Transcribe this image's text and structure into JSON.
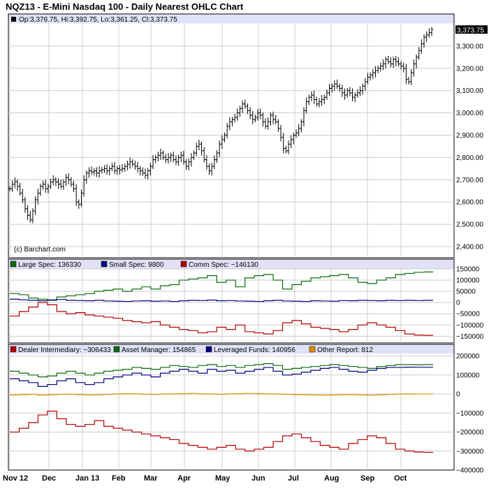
{
  "title": "NQZ13 - E-Mini Nasdaq 100 - Daily Nearest OHLC Chart",
  "watermark": "(c) Barchart.com",
  "colors": {
    "large_spec": "#0b6b0b",
    "small_spec": "#00007f",
    "comm_spec": "#b00000",
    "dealer": "#b00000",
    "asset_manager": "#0b6b0b",
    "leveraged": "#00007f",
    "other": "#e08a00",
    "legend_bg": "#e1e1f8",
    "grid": "#cccccc"
  },
  "chart_data": [
    {
      "type": "ohlc",
      "name": "price",
      "legend": {
        "symbol": "Op:3,376.75, Hi:3,392.75, Lo:3,361.25, Cl:3,373.75"
      },
      "last_label": "3,373.75",
      "ylim": [
        2350,
        3400
      ],
      "y_ticks": [
        {
          "v": 3300,
          "label": "3,300.00"
        },
        {
          "v": 3200,
          "label": "3,200.00"
        },
        {
          "v": 3100,
          "label": "3,100.00"
        },
        {
          "v": 3000,
          "label": "3,000.00"
        },
        {
          "v": 2900,
          "label": "2,900.00"
        },
        {
          "v": 2800,
          "label": "2,800.00"
        },
        {
          "v": 2700,
          "label": "2,700.00"
        },
        {
          "v": 2600,
          "label": "2,600.00"
        },
        {
          "v": 2500,
          "label": "2,500.00"
        },
        {
          "v": 2400,
          "label": "2,400.00"
        }
      ],
      "closes": [
        2660,
        2680,
        2690,
        2670,
        2640,
        2610,
        2570,
        2540,
        2520,
        2560,
        2610,
        2640,
        2670,
        2680,
        2660,
        2670,
        2690,
        2700,
        2690,
        2680,
        2670,
        2690,
        2710,
        2700,
        2680,
        2660,
        2600,
        2590,
        2640,
        2700,
        2730,
        2740,
        2735,
        2740,
        2730,
        2740,
        2745,
        2750,
        2740,
        2750,
        2760,
        2740,
        2750,
        2745,
        2750,
        2760,
        2770,
        2780,
        2770,
        2760,
        2750,
        2740,
        2730,
        2720,
        2740,
        2760,
        2790,
        2800,
        2810,
        2820,
        2800,
        2790,
        2800,
        2810,
        2790,
        2780,
        2800,
        2810,
        2780,
        2760,
        2780,
        2800,
        2820,
        2850,
        2860,
        2830,
        2790,
        2760,
        2740,
        2760,
        2790,
        2820,
        2860,
        2880,
        2900,
        2940,
        2960,
        2970,
        2980,
        3000,
        3020,
        3040,
        3030,
        3010,
        2990,
        2970,
        2980,
        3000,
        2990,
        2960,
        2940,
        2960,
        2990,
        2970,
        2960,
        2930,
        2890,
        2840,
        2830,
        2860,
        2880,
        2900,
        2910,
        2930,
        2960,
        3010,
        3050,
        3070,
        3080,
        3060,
        3040,
        3050,
        3060,
        3070,
        3090,
        3110,
        3120,
        3130,
        3120,
        3110,
        3090,
        3080,
        3100,
        3090,
        3070,
        3080,
        3090,
        3100,
        3120,
        3140,
        3160,
        3170,
        3180,
        3190,
        3200,
        3210,
        3220,
        3240,
        3230,
        3220,
        3240,
        3230,
        3220,
        3210,
        3200,
        3150,
        3140,
        3180,
        3220,
        3250,
        3280,
        3310,
        3340,
        3350,
        3360,
        3374
      ]
    },
    {
      "type": "line",
      "name": "commitments",
      "ylim": [
        -180000,
        150000
      ],
      "y_ticks": [
        {
          "v": 150000,
          "label": "150000"
        },
        {
          "v": 100000,
          "label": "100000"
        },
        {
          "v": 50000,
          "label": "50000"
        },
        {
          "v": 0,
          "label": "0"
        },
        {
          "v": -50000,
          "label": "−50000"
        },
        {
          "v": -100000,
          "label": "−100000"
        },
        {
          "v": -150000,
          "label": "−150000"
        }
      ],
      "series": [
        {
          "key": "large_spec",
          "label": "Large Spec: 136330",
          "values": [
            40000,
            35000,
            20000,
            15000,
            10000,
            25000,
            30000,
            35000,
            40000,
            50000,
            55000,
            60000,
            50000,
            60000,
            70000,
            60000,
            75000,
            80000,
            100000,
            105000,
            110000,
            120000,
            90000,
            100000,
            70000,
            110000,
            120000,
            125000,
            100000,
            60000,
            80000,
            95000,
            110000,
            115000,
            120000,
            125000,
            110000,
            90000,
            85000,
            100000,
            110000,
            125000,
            130000,
            135000,
            136330,
            136330
          ]
        },
        {
          "key": "small_spec",
          "label": "Small Spec: 9800",
          "values": [
            15000,
            12000,
            10000,
            8000,
            12000,
            14000,
            10000,
            9000,
            8000,
            10000,
            7000,
            6000,
            5000,
            7000,
            8000,
            6000,
            7000,
            5000,
            8000,
            10000,
            9000,
            11000,
            8000,
            9000,
            7000,
            6000,
            5000,
            8000,
            10000,
            7000,
            6000,
            5000,
            8000,
            7000,
            6000,
            9000,
            8000,
            10000,
            9000,
            8000,
            10000,
            9000,
            10000,
            9000,
            9800,
            9800
          ]
        },
        {
          "key": "comm_spec",
          "label": "Comm Spec: −146130",
          "values": [
            -60000,
            -40000,
            -20000,
            0,
            -10000,
            -40000,
            -50000,
            -45000,
            -55000,
            -60000,
            -65000,
            -70000,
            -80000,
            -85000,
            -90000,
            -85000,
            -100000,
            -110000,
            -120000,
            -125000,
            -135000,
            -130000,
            -110000,
            -120000,
            -100000,
            -130000,
            -135000,
            -140000,
            -125000,
            -90000,
            -80000,
            -95000,
            -110000,
            -115000,
            -120000,
            -130000,
            -120000,
            -100000,
            -90000,
            -100000,
            -110000,
            -125000,
            -140000,
            -145000,
            -146130,
            -146130
          ]
        }
      ]
    },
    {
      "type": "line",
      "name": "disaggregated",
      "ylim": [
        -400000,
        210000
      ],
      "y_ticks": [
        {
          "v": 200000,
          "label": "200000"
        },
        {
          "v": 100000,
          "label": "100000"
        },
        {
          "v": 0,
          "label": "0"
        },
        {
          "v": -100000,
          "label": "−100000"
        },
        {
          "v": -200000,
          "label": "−200000"
        },
        {
          "v": -300000,
          "label": "−300000"
        },
        {
          "v": -400000,
          "label": "−400000"
        }
      ],
      "series": [
        {
          "key": "dealer",
          "label": "Dealer Intermediary: −306433",
          "values": [
            -200000,
            -180000,
            -150000,
            -110000,
            -90000,
            -130000,
            -160000,
            -170000,
            -160000,
            -140000,
            -170000,
            -180000,
            -190000,
            -200000,
            -210000,
            -220000,
            -230000,
            -240000,
            -260000,
            -270000,
            -280000,
            -290000,
            -280000,
            -270000,
            -290000,
            -300000,
            -290000,
            -280000,
            -250000,
            -220000,
            -210000,
            -230000,
            -250000,
            -270000,
            -280000,
            -290000,
            -260000,
            -240000,
            -220000,
            -230000,
            -260000,
            -290000,
            -300000,
            -305000,
            -306433,
            -306433
          ]
        },
        {
          "key": "asset_manager",
          "label": "Asset Manager: 154865",
          "values": [
            120000,
            110000,
            100000,
            90000,
            95000,
            110000,
            120000,
            110000,
            100000,
            110000,
            120000,
            125000,
            130000,
            140000,
            135000,
            130000,
            140000,
            150000,
            145000,
            140000,
            150000,
            155000,
            145000,
            150000,
            140000,
            150000,
            155000,
            160000,
            150000,
            130000,
            135000,
            140000,
            145000,
            150000,
            155000,
            150000,
            145000,
            140000,
            135000,
            145000,
            150000,
            155000,
            155000,
            154000,
            154865,
            154865
          ]
        },
        {
          "key": "leveraged",
          "label": "Leveraged Funds: 140956",
          "values": [
            80000,
            70000,
            60000,
            40000,
            50000,
            70000,
            80000,
            60000,
            50000,
            60000,
            80000,
            90000,
            100000,
            110000,
            100000,
            90000,
            110000,
            120000,
            130000,
            120000,
            110000,
            130000,
            120000,
            125000,
            110000,
            120000,
            130000,
            140000,
            120000,
            100000,
            105000,
            115000,
            125000,
            135000,
            140000,
            130000,
            120000,
            115000,
            125000,
            135000,
            140000,
            140000,
            141000,
            140956,
            140956,
            140956
          ]
        },
        {
          "key": "other",
          "label": "Other Report: 812",
          "values": [
            -5000,
            -3000,
            -2000,
            -6000,
            -4000,
            -2000,
            -1000,
            -3000,
            -5000,
            -4000,
            -2000,
            0,
            2000,
            1000,
            -1000,
            -2000,
            0,
            1000,
            2000,
            3000,
            1000,
            0,
            -1000,
            1000,
            2000,
            3000,
            2000,
            1000,
            0,
            -2000,
            -3000,
            -4000,
            -5000,
            -6000,
            -5000,
            -4000,
            -3000,
            -5000,
            -6000,
            -4000,
            -2000,
            0,
            500,
            812,
            812,
            812
          ]
        }
      ]
    }
  ],
  "x_axis": {
    "labels": [
      "Nov 12",
      "Dec",
      "Jan 13",
      "Feb",
      "Mar",
      "Apr",
      "May",
      "Jun",
      "Jul",
      "Aug",
      "Sep",
      "Oct"
    ]
  }
}
